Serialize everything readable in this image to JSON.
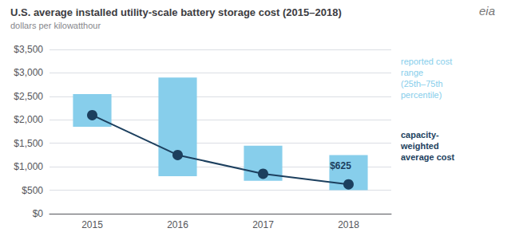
{
  "chart_data": {
    "type": "range_bar_line",
    "title": "U.S. average installed utility-scale battery storage cost (2015–2018)",
    "subtitle": "dollars per kilowatthour",
    "categories": [
      "2015",
      "2016",
      "2017",
      "2018"
    ],
    "series": [
      {
        "name": "reported cost\nrange\n(25th–75th\npercentile)",
        "type": "range_bar",
        "color": "#87CEEB",
        "low": [
          1850,
          800,
          700,
          500
        ],
        "high": [
          2550,
          2900,
          1450,
          1250
        ]
      },
      {
        "name": "capacity-\nweighted\naverage cost",
        "type": "line",
        "color": "#1C3F5E",
        "marker": "circle",
        "values": [
          2100,
          1250,
          850,
          625
        ]
      }
    ],
    "annotations": [
      {
        "text": "$625",
        "x": "2018",
        "y": 625
      },
      {
        "text": "eia"
      }
    ],
    "ylim": [
      0,
      3500
    ],
    "yticks": [
      {
        "value": 0,
        "label": "$0"
      },
      {
        "value": 500,
        "label": "$500"
      },
      {
        "value": 1000,
        "label": "$1,000"
      },
      {
        "value": 1500,
        "label": "$1,500"
      },
      {
        "value": 2000,
        "label": "$2,000"
      },
      {
        "value": 2500,
        "label": "$2,500"
      },
      {
        "value": 3000,
        "label": "$3,000"
      },
      {
        "value": 3500,
        "label": "$3,500"
      }
    ],
    "grid": true,
    "legend": "right"
  }
}
